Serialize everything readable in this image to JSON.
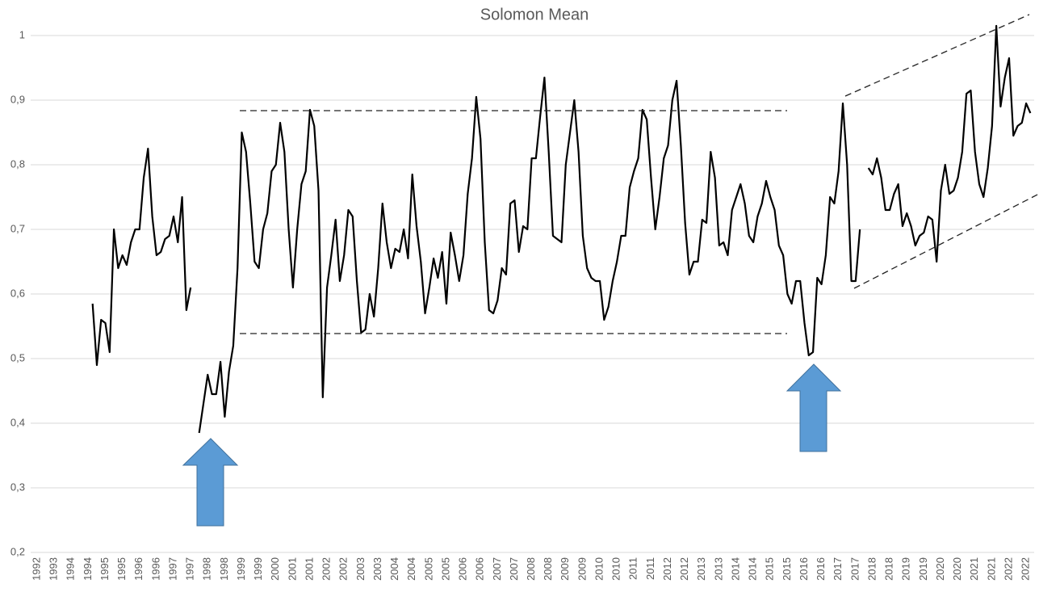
{
  "chart_data": {
    "type": "line",
    "title": "Solomon Mean",
    "categories": [
      "1992",
      null,
      null,
      null,
      "1993",
      null,
      null,
      null,
      "1994",
      null,
      null,
      null,
      "1994",
      null,
      null,
      null,
      "1995",
      null,
      null,
      null,
      "1995",
      null,
      null,
      null,
      "1996",
      null,
      null,
      null,
      "1996",
      null,
      null,
      null,
      "1997",
      null,
      null,
      null,
      "1997",
      null,
      null,
      null,
      "1998",
      null,
      null,
      null,
      "1998",
      null,
      null,
      null,
      "1999",
      null,
      null,
      null,
      "1999",
      null,
      null,
      null,
      "2000",
      null,
      null,
      null,
      "2001",
      null,
      null,
      null,
      "2001",
      null,
      null,
      null,
      "2002",
      null,
      null,
      null,
      "2002",
      null,
      null,
      null,
      "2003",
      null,
      null,
      null,
      "2003",
      null,
      null,
      null,
      "2004",
      null,
      null,
      null,
      "2004",
      null,
      null,
      null,
      "2005",
      null,
      null,
      null,
      "2005",
      null,
      null,
      null,
      "2006",
      null,
      null,
      null,
      "2006",
      null,
      null,
      null,
      "2007",
      null,
      null,
      null,
      "2007",
      null,
      null,
      null,
      "2008",
      null,
      null,
      null,
      "2008",
      null,
      null,
      null,
      "2009",
      null,
      null,
      null,
      "2009",
      null,
      null,
      null,
      "2010",
      null,
      null,
      null,
      "2010",
      null,
      null,
      null,
      "2011",
      null,
      null,
      null,
      "2011",
      null,
      null,
      null,
      "2012",
      null,
      null,
      null,
      "2012",
      null,
      null,
      null,
      "2013",
      null,
      null,
      null,
      "2013",
      null,
      null,
      null,
      "2014",
      null,
      null,
      null,
      "2014",
      null,
      null,
      null,
      "2015",
      null,
      null,
      null,
      "2015",
      null,
      null,
      null,
      "2016",
      null,
      null,
      null,
      "2016",
      null,
      null,
      null,
      "2017",
      null,
      null,
      null,
      "2017",
      null,
      null,
      null,
      "2018",
      null,
      null,
      null,
      "2018",
      null,
      null,
      null,
      "2019",
      null,
      null,
      null,
      "2019",
      null,
      null,
      null,
      "2020",
      null,
      null,
      null,
      "2020",
      null,
      null,
      null,
      "2021",
      null,
      null,
      null,
      "2021",
      null,
      null,
      null,
      "2022",
      null,
      null,
      null,
      "2022",
      null
    ],
    "series": [
      {
        "color": "#000000",
        "values": [
          null,
          null,
          null,
          null,
          null,
          null,
          null,
          null,
          null,
          null,
          null,
          null,
          null,
          0.585,
          0.49,
          0.56,
          0.555,
          0.51,
          0.7,
          0.64,
          0.66,
          0.645,
          0.68,
          0.7,
          0.7,
          0.78,
          0.825,
          0.72,
          0.66,
          0.665,
          0.685,
          0.69,
          0.72,
          0.68,
          0.75,
          0.575,
          0.61,
          null,
          0.385,
          0.43,
          0.475,
          0.445,
          0.445,
          0.495,
          0.41,
          0.48,
          0.52,
          0.64,
          0.85,
          0.82,
          0.74,
          0.65,
          0.64,
          0.7,
          0.725,
          0.79,
          0.8,
          0.865,
          0.82,
          0.7,
          0.61,
          0.7,
          0.77,
          0.79,
          0.885,
          0.86,
          0.76,
          0.44,
          0.61,
          0.66,
          0.715,
          0.62,
          0.66,
          0.73,
          0.72,
          0.62,
          0.54,
          0.545,
          0.6,
          0.565,
          0.64,
          0.74,
          0.68,
          0.64,
          0.67,
          0.665,
          0.7,
          0.655,
          0.785,
          0.705,
          0.65,
          0.57,
          0.61,
          0.655,
          0.625,
          0.665,
          0.585,
          0.695,
          0.66,
          0.62,
          0.66,
          0.755,
          0.81,
          0.905,
          0.84,
          0.68,
          0.575,
          0.57,
          0.59,
          0.64,
          0.63,
          0.74,
          0.745,
          0.665,
          0.705,
          0.7,
          0.81,
          0.81,
          0.875,
          0.935,
          0.82,
          0.69,
          0.685,
          0.68,
          0.8,
          0.85,
          0.9,
          0.82,
          0.69,
          0.64,
          0.625,
          0.62,
          0.62,
          0.56,
          0.58,
          0.62,
          0.65,
          0.69,
          0.69,
          0.765,
          0.79,
          0.81,
          0.885,
          0.87,
          0.78,
          0.7,
          0.75,
          0.81,
          0.83,
          0.9,
          0.93,
          0.83,
          0.71,
          0.63,
          0.65,
          0.65,
          0.715,
          0.71,
          0.82,
          0.78,
          0.675,
          0.68,
          0.66,
          0.73,
          0.75,
          0.77,
          0.74,
          0.69,
          0.68,
          0.72,
          0.74,
          0.775,
          0.75,
          0.73,
          0.675,
          0.66,
          0.6,
          0.585,
          0.62,
          0.62,
          0.555,
          0.505,
          0.51,
          0.625,
          0.615,
          0.66,
          0.75,
          0.74,
          0.79,
          0.895,
          0.8,
          0.62,
          0.62,
          0.7,
          null,
          0.795,
          0.785,
          0.81,
          0.78,
          0.73,
          0.73,
          0.755,
          0.77,
          0.705,
          0.725,
          0.705,
          0.675,
          0.69,
          0.695,
          0.72,
          0.715,
          0.65,
          0.76,
          0.8,
          0.755,
          0.76,
          0.78,
          0.82,
          0.91,
          0.915,
          0.82,
          0.77,
          0.75,
          0.795,
          0.86,
          1.015,
          0.89,
          0.935,
          0.965,
          0.845,
          0.86,
          0.865,
          0.895,
          0.88
        ]
      }
    ],
    "ylim": [
      0.2,
      1.0
    ],
    "yticks": [
      {
        "value": 0.2,
        "label": "0,2"
      },
      {
        "value": 0.3,
        "label": "0,3"
      },
      {
        "value": 0.4,
        "label": "0,4"
      },
      {
        "value": 0.5,
        "label": "0,5"
      },
      {
        "value": 0.6,
        "label": "0,6"
      },
      {
        "value": 0.7,
        "label": "0,7"
      },
      {
        "value": 0.8,
        "label": "0,8"
      },
      {
        "value": 0.9,
        "label": "0,9"
      },
      1
    ],
    "grid": true
  }
}
